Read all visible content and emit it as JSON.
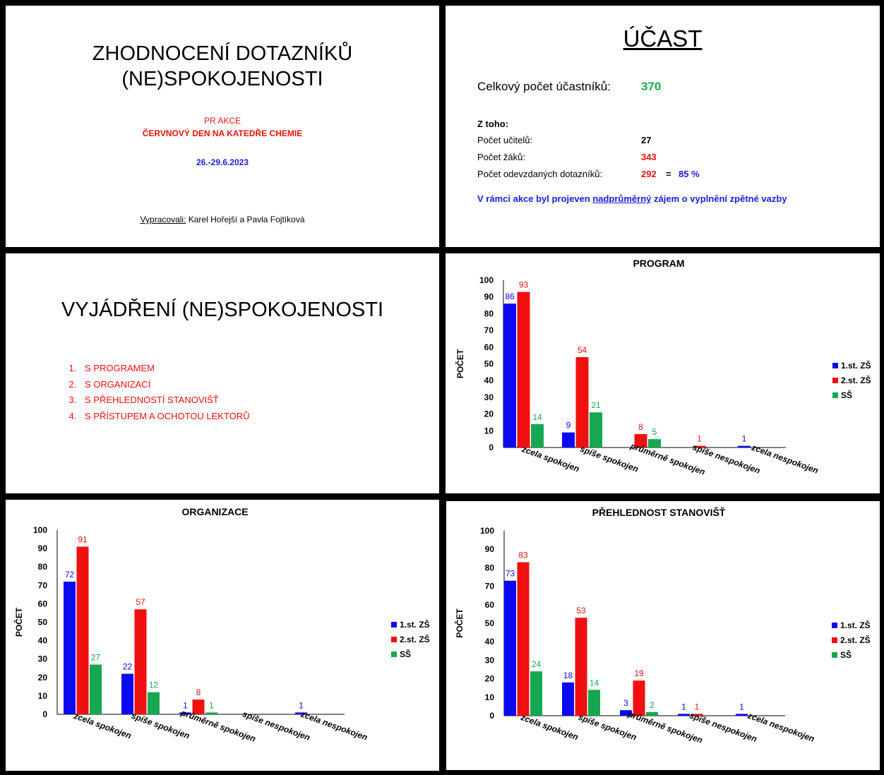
{
  "slide1": {
    "title_line1": "ZHODNOCENÍ DOTAZNÍKŮ",
    "title_line2": "(NE)SPOKOJENOSTI",
    "subtitle_line1": "PR AKCE",
    "subtitle_line2": "ČERVNOVÝ DEN NA KATEDŘE CHEMIE",
    "date": "26.-29.6.2023",
    "authors_label": "Vypracovali:",
    "authors": " Karel Hořejší a Pavla Fojtíková"
  },
  "slide2": {
    "title": "ÚČAST",
    "total_label": "Celkový počet účastníků:",
    "total_value": "370",
    "of_which": "Z toho:",
    "teachers_label": "Počet učitelů:",
    "teachers_value": "27",
    "pupils_label": "Počet žáků:",
    "pupils_value": "343",
    "forms_label": "Počet odevzdaných dotazníků:",
    "forms_value": "292",
    "equals": "=",
    "forms_percent": "85 %",
    "note_pre": "V rámci akce byl projeven ",
    "note_underlined": "nadprůměrný",
    "note_post": " zájem o vyplnění zpětné vazby"
  },
  "slide3": {
    "title": "VYJÁDŘENÍ (NE)SPOKOJENOSTI",
    "items": [
      "S PROGRAMEM",
      "S ORGANIZACÍ",
      "S PŘEHLEDNOSTÍ STANOVIŠŤ",
      "S PŘÍSTUPEM A OCHOTOU LEKTORŮ"
    ]
  },
  "colors": {
    "zs1": "#0a0af0",
    "zs2": "#f01010",
    "ss": "#16a850"
  },
  "chart_data": [
    {
      "type": "bar",
      "title": "PROGRAM",
      "ylabel": "POČET",
      "xlabel": "",
      "ylim": [
        0,
        100
      ],
      "yticks": [
        "0",
        "10",
        "20",
        "30",
        "40",
        "50",
        "60",
        "70",
        "80",
        "90",
        "100"
      ],
      "categories": [
        "zcela spokojen",
        "spíše spokojen",
        "průměrně spokojen",
        "spíše nespokojen",
        "zcela nespokojen"
      ],
      "legend_position": "right",
      "series": [
        {
          "name": "1.st. ZŠ",
          "values": [
            86,
            9,
            0,
            0,
            1
          ],
          "labels": [
            "86",
            "9",
            "",
            "",
            "1"
          ]
        },
        {
          "name": "2.st. ZŠ",
          "values": [
            93,
            54,
            8,
            1,
            0
          ],
          "labels": [
            "93",
            "54",
            "8",
            "1",
            ""
          ]
        },
        {
          "name": "SŠ",
          "values": [
            14,
            21,
            5,
            0,
            0
          ],
          "labels": [
            "14",
            "21",
            "5",
            "",
            ""
          ]
        }
      ]
    },
    {
      "type": "bar",
      "title": "ORGANIZACE",
      "ylabel": "POČET",
      "xlabel": "",
      "ylim": [
        0,
        100
      ],
      "yticks": [
        "0",
        "10",
        "20",
        "30",
        "40",
        "50",
        "60",
        "70",
        "80",
        "90",
        "100"
      ],
      "categories": [
        "zcela spokojen",
        "spíše spokojen",
        "průměrně spokojen",
        "spíše nespokojen",
        "zcela nespokojen"
      ],
      "legend_position": "right",
      "series": [
        {
          "name": "1.st. ZŠ",
          "values": [
            72,
            22,
            1,
            0,
            1
          ],
          "labels": [
            "72",
            "22",
            "1",
            "",
            "1"
          ]
        },
        {
          "name": "2.st. ZŠ",
          "values": [
            91,
            57,
            8,
            0,
            0
          ],
          "labels": [
            "91",
            "57",
            "8",
            "",
            ""
          ]
        },
        {
          "name": "SŠ",
          "values": [
            27,
            12,
            1,
            0,
            0
          ],
          "labels": [
            "27",
            "12",
            "1",
            "",
            ""
          ]
        }
      ]
    },
    {
      "type": "bar",
      "title": "PŘEHLEDNOST STANOVIŠŤ",
      "ylabel": "POČET",
      "xlabel": "",
      "ylim": [
        0,
        100
      ],
      "yticks": [
        "0",
        "10",
        "20",
        "30",
        "40",
        "50",
        "60",
        "70",
        "80",
        "90",
        "100"
      ],
      "categories": [
        "zcela spokojen",
        "spíše spokojen",
        "průměrně spokojen",
        "spíše nespokojen",
        "zcela nespokojen"
      ],
      "legend_position": "right",
      "series": [
        {
          "name": "1.st. ZŠ",
          "values": [
            73,
            18,
            3,
            1,
            1
          ],
          "labels": [
            "73",
            "18",
            "3",
            "1",
            "1"
          ]
        },
        {
          "name": "2.st. ZŠ",
          "values": [
            83,
            53,
            19,
            1,
            0
          ],
          "labels": [
            "83",
            "53",
            "19",
            "1",
            ""
          ]
        },
        {
          "name": "SŠ",
          "values": [
            24,
            14,
            2,
            0,
            0
          ],
          "labels": [
            "24",
            "14",
            "2",
            "",
            ""
          ]
        }
      ]
    }
  ]
}
